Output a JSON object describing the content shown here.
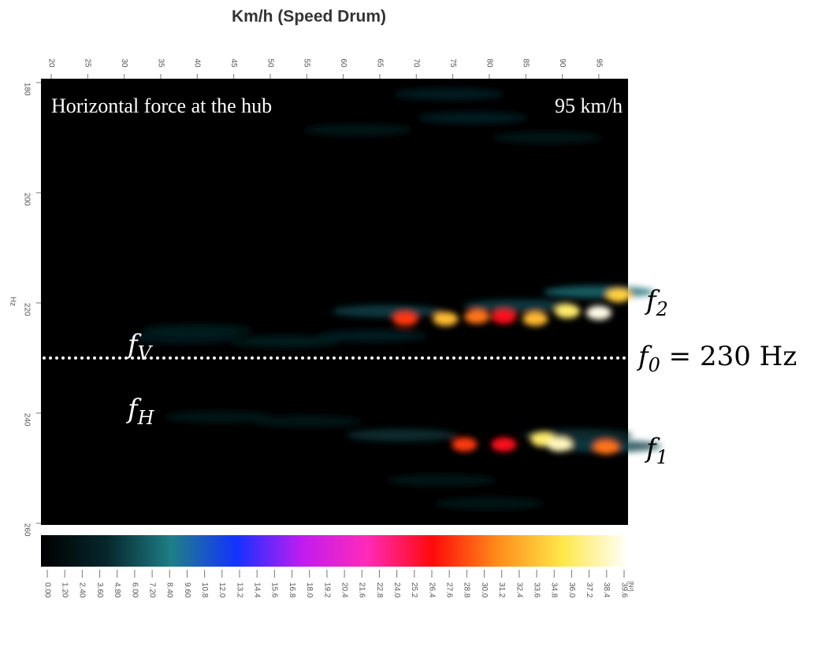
{
  "chart_data": {
    "type": "heatmap",
    "xlabel": "Km/h (Speed Drum)",
    "ylabel": "Hz",
    "title": "Horizontal force at the hub",
    "speed_label": "95 km/h",
    "xlim": [
      18.6,
      99
    ],
    "xticks": [
      20,
      25,
      30,
      35,
      40,
      45,
      50,
      55,
      60,
      65,
      70,
      75,
      80,
      85,
      90,
      95
    ],
    "ylim": [
      179.3,
      260.3
    ],
    "yticks": [
      180,
      200,
      220,
      240,
      260
    ],
    "x": [
      43,
      55,
      38,
      64,
      74.5,
      77.7,
      62,
      73.4,
      80,
      88,
      40,
      52,
      68,
      92,
      96,
      66,
      84,
      95,
      68.5,
      74,
      78.3,
      82,
      86.3,
      90.7,
      95,
      97.7,
      76.6,
      82,
      87.4,
      89.6,
      96
    ],
    "y": [
      240.7,
      241.5,
      226.4,
      226,
      182.1,
      186.4,
      188.6,
      252.2,
      256.4,
      190,
      225,
      227,
      244,
      244,
      246,
      221.5,
      220.5,
      218,
      222.9,
      222.9,
      222.5,
      222.5,
      222.9,
      221.5,
      221.8,
      218.6,
      245.7,
      245.7,
      244.8,
      245.7,
      246.2
    ],
    "values": [
      2.5,
      2.5,
      3.2,
      4,
      4,
      4,
      3,
      3,
      3,
      3,
      3.6,
      3.6,
      5,
      5,
      6,
      6,
      6,
      8,
      28,
      33,
      30,
      26,
      33,
      36,
      39,
      34,
      28,
      26,
      36,
      38,
      30
    ],
    "reference_line": {
      "value": 230,
      "label": {
        "base": "f",
        "sub": "0",
        "rest": " = 230 Hz"
      }
    },
    "annotations": [
      {
        "base": "f",
        "sub": "V"
      },
      {
        "base": "f",
        "sub": "H"
      },
      {
        "base": "f",
        "sub": "2"
      },
      {
        "base": "f",
        "sub": "1"
      }
    ],
    "clim": [
      0,
      39.6
    ],
    "colormap": [
      "#000000",
      "#06262b",
      "#1e7f86",
      "#1432ff",
      "#c01cf0",
      "#ff2ab8",
      "#ff0a0a",
      "#ff8c1a",
      "#ffe84a",
      "#ffffff"
    ],
    "colorbar_label": "[N²]",
    "colorbar_ticks": [
      {
        "value": 0,
        "label": "0.00"
      },
      {
        "value": 1.2,
        "label": "1.20"
      },
      {
        "value": 2.4,
        "label": "2.40"
      },
      {
        "value": 3.6,
        "label": "3.60"
      },
      {
        "value": 4.8,
        "label": "4.80"
      },
      {
        "value": 6,
        "label": "6.00"
      },
      {
        "value": 7.2,
        "label": "7.20"
      },
      {
        "value": 8.4,
        "label": "8.40"
      },
      {
        "value": 9.6,
        "label": "9.60"
      },
      10.8,
      {
        "value": 12,
        "label": "12.0"
      },
      13.2,
      14.4,
      15.6,
      16.8,
      {
        "value": 18,
        "label": "18.0"
      },
      19.2,
      20.4,
      21.6,
      22.8,
      {
        "value": 24,
        "label": "24.0"
      },
      25.2,
      26.4,
      27.6,
      28.8,
      {
        "value": 30,
        "label": "30.0"
      },
      31.2,
      32.4,
      33.6,
      34.8,
      {
        "value": 36,
        "label": "36.0"
      },
      37.2,
      38.4,
      39.6
    ]
  }
}
